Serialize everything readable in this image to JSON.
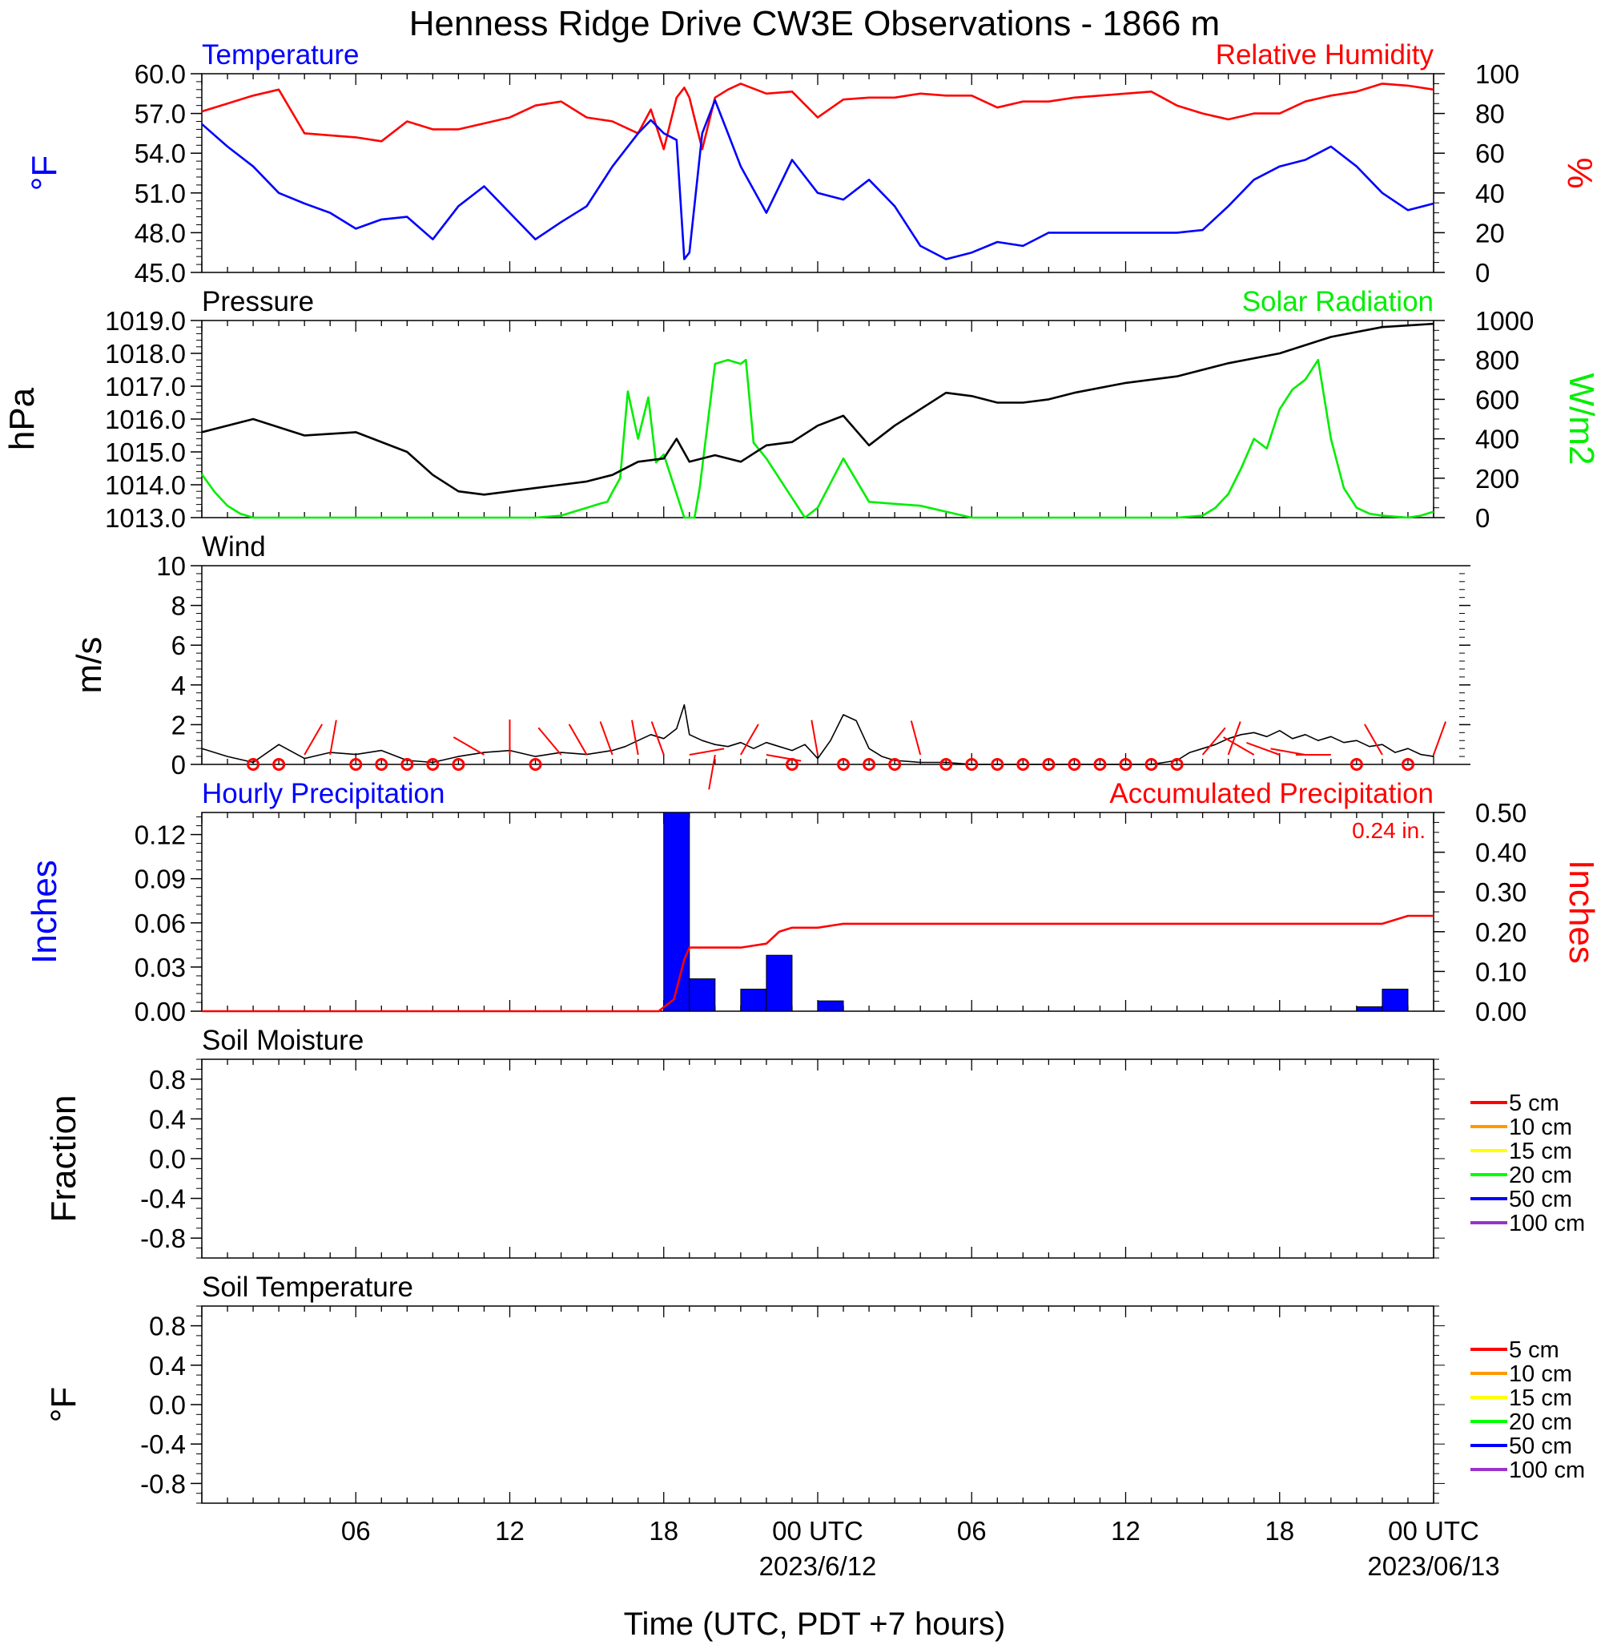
{
  "title": "Henness Ridge Drive CW3E Observations - 1866 m",
  "xlabel": "Time (UTC, PDT +7 hours)",
  "x_ticks": [
    "06",
    "12",
    "18",
    "00 UTC",
    "06",
    "12",
    "18",
    "00 UTC"
  ],
  "x_dates": [
    "2023/6/12",
    "2023/06/13"
  ],
  "colors": {
    "temperature": "#0000ff",
    "humidity": "#ff0000",
    "pressure": "#000000",
    "solar": "#00ee00",
    "wind": "#000000",
    "barb": "#ff0000",
    "hourly": "#0000ff",
    "accum": "#ff0000"
  },
  "chart_data": [
    {
      "type": "line",
      "panel": "temperature_humidity",
      "left_title": "Temperature",
      "right_title": "Relative Humidity",
      "ylabel_left": "°F",
      "ylabel_right": "%",
      "ylim_left": [
        45.0,
        60.0
      ],
      "ylim_right": [
        0,
        100
      ],
      "yticks_left": [
        "45.0",
        "48.0",
        "51.0",
        "54.0",
        "57.0",
        "60.0"
      ],
      "yticks_right": [
        "0",
        "20",
        "40",
        "60",
        "80",
        "100"
      ],
      "x_hours": [
        0,
        1,
        2,
        3,
        4,
        5,
        6,
        7,
        8,
        9,
        10,
        11,
        12,
        13,
        14,
        15,
        16,
        17,
        17.5,
        18,
        18.5,
        18.8,
        19,
        19.5,
        20,
        20.5,
        21,
        22,
        23,
        24,
        25,
        26,
        27,
        28,
        29,
        30,
        31,
        32,
        33,
        34,
        35,
        36,
        37,
        38,
        39,
        40,
        41,
        42,
        43,
        44,
        45,
        46,
        47,
        48
      ],
      "series": [
        {
          "name": "Temperature",
          "axis": "left",
          "values": [
            56.2,
            54.5,
            53.0,
            51.0,
            50.2,
            49.5,
            48.3,
            49.0,
            49.2,
            47.5,
            50.0,
            51.5,
            49.5,
            47.5,
            48.8,
            50.0,
            53.0,
            55.5,
            56.5,
            55.5,
            55.0,
            46.0,
            46.5,
            55.5,
            58.0,
            55.5,
            53.0,
            49.5,
            53.5,
            51.0,
            50.5,
            52.0,
            50.0,
            47.0,
            46.0,
            46.5,
            47.3,
            47.0,
            48.0,
            48.0,
            48.0,
            48.0,
            48.0,
            48.0,
            48.2,
            50.0,
            52.0,
            53.0,
            53.5,
            54.5,
            53.0,
            51.0,
            49.7,
            50.2
          ]
        },
        {
          "name": "Relative Humidity",
          "axis": "right",
          "values": [
            81,
            85,
            89,
            92,
            70,
            69,
            68,
            66,
            76,
            72,
            72,
            75,
            78,
            84,
            86,
            78,
            76,
            70,
            82,
            62,
            88,
            93,
            88,
            62,
            88,
            92,
            95,
            90,
            91,
            78,
            87,
            88,
            88,
            90,
            89,
            89,
            83,
            86,
            86,
            88,
            89,
            90,
            91,
            84,
            80,
            77,
            80,
            80,
            86,
            89,
            91,
            95,
            94,
            92
          ]
        }
      ]
    },
    {
      "type": "line",
      "panel": "pressure_solar",
      "left_title": "Pressure",
      "right_title": "Solar Radiation",
      "ylabel_left": "hPa",
      "ylabel_right": "W/m2",
      "ylim_left": [
        1013.0,
        1019.0
      ],
      "ylim_right": [
        0,
        1000
      ],
      "yticks_left": [
        "1013.0",
        "1014.0",
        "1015.0",
        "1016.0",
        "1017.0",
        "1018.0",
        "1019.0"
      ],
      "yticks_right": [
        "0",
        "200",
        "400",
        "600",
        "800",
        "1000"
      ],
      "pressure": {
        "name": "Pressure",
        "x_hours": [
          0,
          2,
          4,
          6,
          8,
          9,
          10,
          11,
          12,
          13,
          14,
          15,
          16,
          17,
          18,
          18.5,
          19,
          20,
          21,
          22,
          23,
          24,
          25,
          26,
          27,
          28,
          29,
          30,
          31,
          32,
          33,
          34,
          36,
          38,
          40,
          42,
          44,
          46,
          48
        ],
        "values": [
          1015.6,
          1016.0,
          1015.5,
          1015.6,
          1015.0,
          1014.3,
          1013.8,
          1013.7,
          1013.8,
          1013.9,
          1014.0,
          1014.1,
          1014.3,
          1014.7,
          1014.8,
          1015.4,
          1014.7,
          1014.9,
          1014.7,
          1015.2,
          1015.3,
          1015.8,
          1016.1,
          1015.2,
          1015.8,
          1016.3,
          1016.8,
          1016.7,
          1016.5,
          1016.5,
          1016.6,
          1016.8,
          1017.1,
          1017.3,
          1017.7,
          1018.0,
          1018.5,
          1018.8,
          1018.9
        ]
      },
      "solar": {
        "name": "Solar Radiation",
        "x_hours": [
          0,
          0.5,
          1,
          1.5,
          2,
          4,
          10,
          12,
          13,
          14,
          15,
          15.5,
          15.8,
          16,
          16.3,
          16.6,
          17,
          17.4,
          17.7,
          18,
          18.3,
          18.5,
          18.8,
          19.2,
          19.4,
          20,
          20.5,
          21,
          21.2,
          21.5,
          22,
          22.5,
          23,
          23.5,
          24,
          25,
          26,
          27,
          28,
          30,
          32,
          34,
          36,
          37,
          38,
          39,
          39.5,
          40,
          40.5,
          41,
          41.5,
          42,
          42.5,
          43,
          43.5,
          44,
          44.5,
          45,
          45.5,
          46,
          46.5,
          47,
          47.5,
          48
        ],
        "values": [
          220,
          130,
          60,
          20,
          0,
          0,
          0,
          0,
          0,
          10,
          50,
          70,
          80,
          130,
          200,
          640,
          400,
          610,
          280,
          320,
          200,
          120,
          0,
          0,
          150,
          780,
          800,
          780,
          800,
          380,
          300,
          200,
          100,
          0,
          50,
          300,
          80,
          70,
          60,
          0,
          0,
          0,
          0,
          0,
          0,
          10,
          50,
          120,
          250,
          400,
          350,
          550,
          650,
          700,
          800,
          400,
          150,
          50,
          20,
          10,
          5,
          0,
          10,
          30
        ]
      }
    },
    {
      "type": "line",
      "panel": "wind",
      "left_title": "Wind",
      "ylabel_left": "m/s",
      "ylim_left": [
        0,
        10
      ],
      "yticks_left": [
        "0",
        "2",
        "4",
        "6",
        "8",
        "10"
      ],
      "wind_speed": {
        "name": "Wind",
        "x_hours": [
          0,
          1,
          2,
          3,
          4,
          5,
          6,
          7,
          8,
          9,
          10,
          11,
          12,
          13,
          14,
          15,
          16,
          16.5,
          17,
          17.5,
          18,
          18.5,
          18.8,
          19,
          19.5,
          20,
          20.5,
          21,
          21.5,
          22,
          22.5,
          23,
          23.5,
          24,
          24.5,
          25,
          25.5,
          26,
          26.5,
          27,
          28,
          29,
          30,
          31,
          32,
          33,
          34,
          35,
          36,
          37,
          38,
          38.5,
          39,
          39.5,
          40,
          40.5,
          41,
          41.5,
          42,
          42.5,
          43,
          43.5,
          44,
          44.5,
          45,
          45.5,
          46,
          46.5,
          47,
          47.5,
          48
        ],
        "values": [
          0.8,
          0.4,
          0.1,
          1.0,
          0.3,
          0.6,
          0.5,
          0.7,
          0.2,
          0.1,
          0.4,
          0.6,
          0.7,
          0.4,
          0.6,
          0.5,
          0.7,
          0.9,
          1.2,
          1.5,
          1.3,
          1.8,
          3.0,
          1.5,
          1.2,
          1.0,
          0.9,
          1.1,
          0.8,
          1.1,
          0.9,
          0.7,
          1.0,
          0.3,
          1.2,
          2.5,
          2.2,
          0.8,
          0.4,
          0.2,
          0.1,
          0.1,
          0.0,
          0.0,
          0.0,
          0.0,
          0.0,
          0.0,
          0.0,
          0.0,
          0.2,
          0.6,
          0.8,
          1.0,
          1.3,
          1.5,
          1.6,
          1.4,
          1.7,
          1.3,
          1.5,
          1.2,
          1.4,
          1.1,
          1.2,
          0.9,
          1.0,
          0.6,
          0.8,
          0.5,
          0.4
        ]
      },
      "barbs": [
        {
          "h": 2,
          "calm": true
        },
        {
          "h": 3,
          "calm": true
        },
        {
          "h": 4,
          "calm": false,
          "dir": 30
        },
        {
          "h": 5,
          "calm": false,
          "dir": 10
        },
        {
          "h": 6,
          "calm": true
        },
        {
          "h": 7,
          "calm": true
        },
        {
          "h": 8,
          "calm": true
        },
        {
          "h": 9,
          "calm": true
        },
        {
          "h": 10,
          "calm": true
        },
        {
          "h": 11,
          "calm": false,
          "dir": 300
        },
        {
          "h": 12,
          "calm": false,
          "dir": 0
        },
        {
          "h": 13,
          "calm": true
        },
        {
          "h": 14,
          "calm": false,
          "dir": 320
        },
        {
          "h": 15,
          "calm": false,
          "dir": 330
        },
        {
          "h": 16,
          "calm": false,
          "dir": 340
        },
        {
          "h": 17,
          "calm": false,
          "dir": 350
        },
        {
          "h": 18,
          "calm": false,
          "dir": 340
        },
        {
          "h": 19,
          "calm": false,
          "dir": 80
        },
        {
          "h": 20,
          "calm": false,
          "dir": 190
        },
        {
          "h": 21,
          "calm": false,
          "dir": 30
        },
        {
          "h": 22,
          "calm": false,
          "dir": 100
        },
        {
          "h": 23,
          "calm": true
        },
        {
          "h": 24,
          "calm": false,
          "dir": 350
        },
        {
          "h": 25,
          "calm": true
        },
        {
          "h": 26,
          "calm": true
        },
        {
          "h": 27,
          "calm": true
        },
        {
          "h": 28,
          "calm": false,
          "dir": 345
        },
        {
          "h": 29,
          "calm": true
        },
        {
          "h": 30,
          "calm": true
        },
        {
          "h": 31,
          "calm": true
        },
        {
          "h": 32,
          "calm": true
        },
        {
          "h": 33,
          "calm": true
        },
        {
          "h": 34,
          "calm": true
        },
        {
          "h": 35,
          "calm": true
        },
        {
          "h": 36,
          "calm": true
        },
        {
          "h": 37,
          "calm": true
        },
        {
          "h": 38,
          "calm": true
        },
        {
          "h": 39,
          "calm": false,
          "dir": 40
        },
        {
          "h": 40,
          "calm": false,
          "dir": 20
        },
        {
          "h": 41,
          "calm": false,
          "dir": 300
        },
        {
          "h": 42,
          "calm": false,
          "dir": 290
        },
        {
          "h": 43,
          "calm": false,
          "dir": 280
        },
        {
          "h": 44,
          "calm": false,
          "dir": 270
        },
        {
          "h": 45,
          "calm": true
        },
        {
          "h": 46,
          "calm": false,
          "dir": 330
        },
        {
          "h": 47,
          "calm": true
        },
        {
          "h": 48,
          "calm": false,
          "dir": 20
        }
      ]
    },
    {
      "type": "bar",
      "panel": "precipitation",
      "left_title": "Hourly Precipitation",
      "right_title": "Accumulated Precipitation",
      "ylabel_left": "Inches",
      "ylabel_right": "Inches",
      "annotation": "0.24 in.",
      "ylim_left": [
        0,
        0.135
      ],
      "ylim_right": [
        0,
        0.5
      ],
      "yticks_left": [
        "0.00",
        "0.03",
        "0.06",
        "0.09",
        "0.12"
      ],
      "yticks_right": [
        "0.00",
        "0.10",
        "0.20",
        "0.30",
        "0.40",
        "0.50"
      ],
      "hourly": {
        "name": "Hourly Precipitation",
        "x_start_hours": [
          18,
          19,
          20,
          21,
          22,
          23,
          24,
          25,
          26,
          27,
          45,
          46
        ],
        "values": [
          0.135,
          0.022,
          0.0,
          0.015,
          0.038,
          0.0,
          0.007,
          0.0,
          0.0,
          0.0,
          0.003,
          0.015
        ]
      },
      "accumulated": {
        "name": "Accumulated Precipitation",
        "x_hours": [
          0,
          17.8,
          18.4,
          18.8,
          19,
          19.5,
          20,
          21,
          22,
          22.5,
          23,
          24,
          25,
          45,
          46,
          47,
          48
        ],
        "values": [
          0,
          0,
          0.03,
          0.13,
          0.16,
          0.16,
          0.16,
          0.16,
          0.17,
          0.2,
          0.21,
          0.21,
          0.22,
          0.22,
          0.22,
          0.24,
          0.24
        ]
      }
    },
    {
      "type": "line",
      "panel": "soil_moisture",
      "left_title": "Soil Moisture",
      "ylabel_left": "Fraction",
      "ylim_left": [
        -1.0,
        1.0
      ],
      "yticks_left": [
        "-0.8",
        "-0.4",
        "0.0",
        "0.4",
        "0.8"
      ],
      "legend": [
        "5 cm",
        "10 cm",
        "15 cm",
        "20 cm",
        "50 cm",
        "100 cm"
      ],
      "legend_colors": [
        "#ff0000",
        "#ff9900",
        "#ffff00",
        "#00ff00",
        "#0000ff",
        "#9933cc"
      ],
      "series": []
    },
    {
      "type": "line",
      "panel": "soil_temperature",
      "left_title": "Soil Temperature",
      "ylabel_left": "°F",
      "ylim_left": [
        -1.0,
        1.0
      ],
      "yticks_left": [
        "-0.8",
        "-0.4",
        "0.0",
        "0.4",
        "0.8"
      ],
      "legend": [
        "5 cm",
        "10 cm",
        "15 cm",
        "20 cm",
        "50 cm",
        "100 cm"
      ],
      "legend_colors": [
        "#ff0000",
        "#ff9900",
        "#ffff00",
        "#00ff00",
        "#0000ff",
        "#9933cc"
      ],
      "series": []
    }
  ]
}
